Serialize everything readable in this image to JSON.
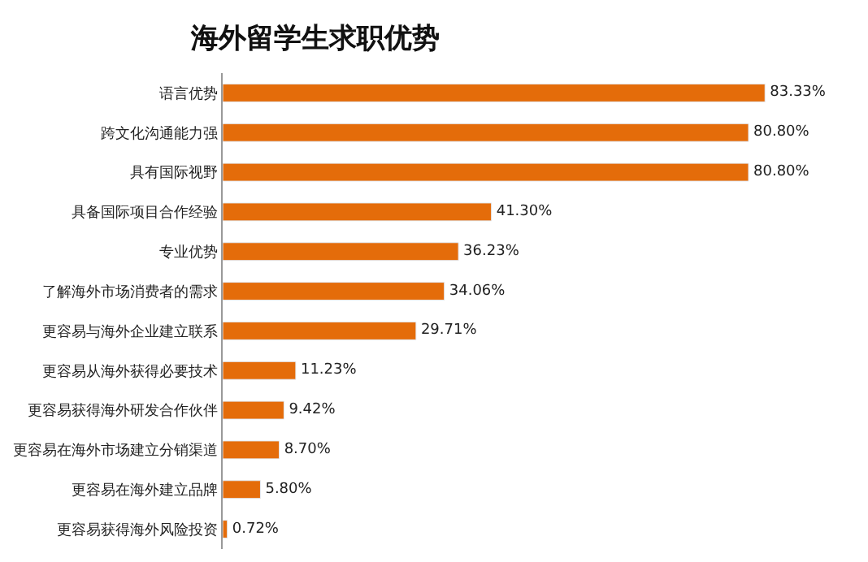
{
  "chart_data": {
    "type": "bar",
    "orientation": "horizontal",
    "title": "海外留学生求职优势",
    "categories": [
      "语言优势",
      "跨文化沟通能力强",
      "具有国际视野",
      "具备国际项目合作经验",
      "专业优势",
      "了解海外市场消费者的需求",
      "更容易与海外企业建立联系",
      "更容易从海外获得必要技术",
      "更容易获得海外研发合作伙伴",
      "更容易在海外市场建立分销渠道",
      "更容易在海外建立品牌",
      "更容易获得海外风险投资"
    ],
    "values": [
      83.33,
      80.8,
      80.8,
      41.3,
      36.23,
      34.06,
      29.71,
      11.23,
      9.42,
      8.7,
      5.8,
      0.72
    ],
    "value_labels": [
      "83.33%",
      "80.80%",
      "80.80%",
      "41.30%",
      "36.23%",
      "34.06%",
      "29.71%",
      "11.23%",
      "9.42%",
      "8.70%",
      "5.80%",
      "0.72%"
    ],
    "color": "#e46c0a",
    "legend": false
  }
}
